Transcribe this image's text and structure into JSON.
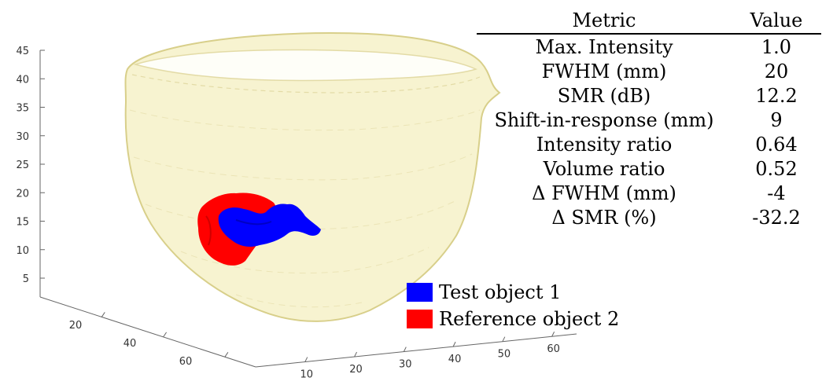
{
  "axes": {
    "z_ticks": [
      "5",
      "10",
      "15",
      "20",
      "25",
      "30",
      "35",
      "40",
      "45"
    ],
    "y_ticks": [
      "20",
      "40",
      "60"
    ],
    "x_ticks": [
      "10",
      "20",
      "30",
      "40",
      "50",
      "60"
    ]
  },
  "table": {
    "header": {
      "metric": "Metric",
      "value": "Value"
    },
    "rows": [
      {
        "metric": "Max. Intensity",
        "value": "1.0"
      },
      {
        "metric": "FWHM (mm)",
        "value": "20"
      },
      {
        "metric": "SMR (dB)",
        "value": "12.2"
      },
      {
        "metric": "Shift-in-response (mm)",
        "value": "9"
      },
      {
        "metric": "Intensity ratio",
        "value": "0.64"
      },
      {
        "metric": "Volume ratio",
        "value": "0.52"
      },
      {
        "metric": "Δ FWHM (mm)",
        "value": "-4"
      },
      {
        "metric": "Δ SMR (%)",
        "value": "-32.2"
      }
    ]
  },
  "legend": [
    {
      "label": "Test object 1",
      "color": "#0000ff"
    },
    {
      "label": "Reference object 2",
      "color": "#ff0000"
    }
  ],
  "colors": {
    "shell": "#f4efc0",
    "test": "#0000ff",
    "reference": "#ff0000"
  }
}
